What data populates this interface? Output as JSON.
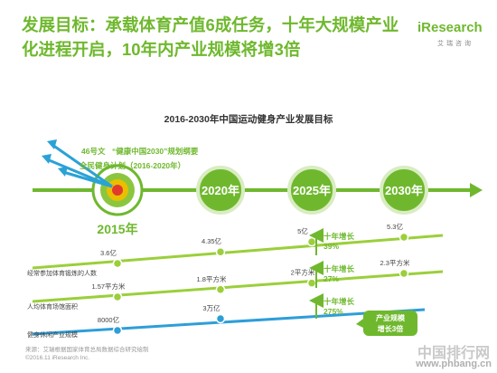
{
  "header": {
    "title": "发展目标：承载体育产值6成任务，十年大规模产业化进程开启，10年内产业规模将增3倍"
  },
  "logo": {
    "mark": "iResearch",
    "sub": "艾瑞咨询"
  },
  "chart_data": {
    "type": "line",
    "title": "2016-2030年中国运动健身产业发展目标",
    "milestones": [
      "2015年",
      "2020年",
      "2025年",
      "2030年"
    ],
    "policy_labels": [
      "46号文",
      "“健康中国2030”规划纲要",
      "全民健身计划（2016-2020年）"
    ],
    "series": [
      {
        "name": "经常参加体育锻炼的人数",
        "labels": [
          "3.6亿",
          "4.35亿",
          "5亿",
          "5.3亿"
        ],
        "values": [
          3.6,
          4.35,
          5,
          5.3
        ],
        "unit": "亿"
      },
      {
        "name": "人均体育场馆面积",
        "labels": [
          "1.57平方米",
          "1.8平方米",
          "2平方米",
          "2.3平方米"
        ],
        "values": [
          1.57,
          1.8,
          2,
          2.3
        ],
        "unit": "平方米"
      },
      {
        "name": "健身休闲产业规模",
        "labels": [
          "8000亿",
          "3万亿"
        ],
        "values": [
          8000,
          30000
        ],
        "unit": "亿"
      }
    ],
    "growth_annotations": [
      {
        "label": "十年增长",
        "value": "39%"
      },
      {
        "label": "十年增长",
        "value": "27%"
      },
      {
        "label": "十年增长",
        "value": "275%"
      }
    ],
    "callout": [
      "产业规模",
      "增长3倍"
    ],
    "colors": {
      "green": "#6fb82e",
      "light_green": "#9bcf3b",
      "blue": "#2e9ed8",
      "arrow_blue": "#2aa2d6"
    }
  },
  "footer": {
    "source": "来源：艾瑞根据国家体育总局数据综合研究绘制",
    "copyright": "©2016.11 iResearch Inc."
  },
  "watermark": {
    "cn": "中国排行网",
    "url": "www.phbang.cn"
  }
}
